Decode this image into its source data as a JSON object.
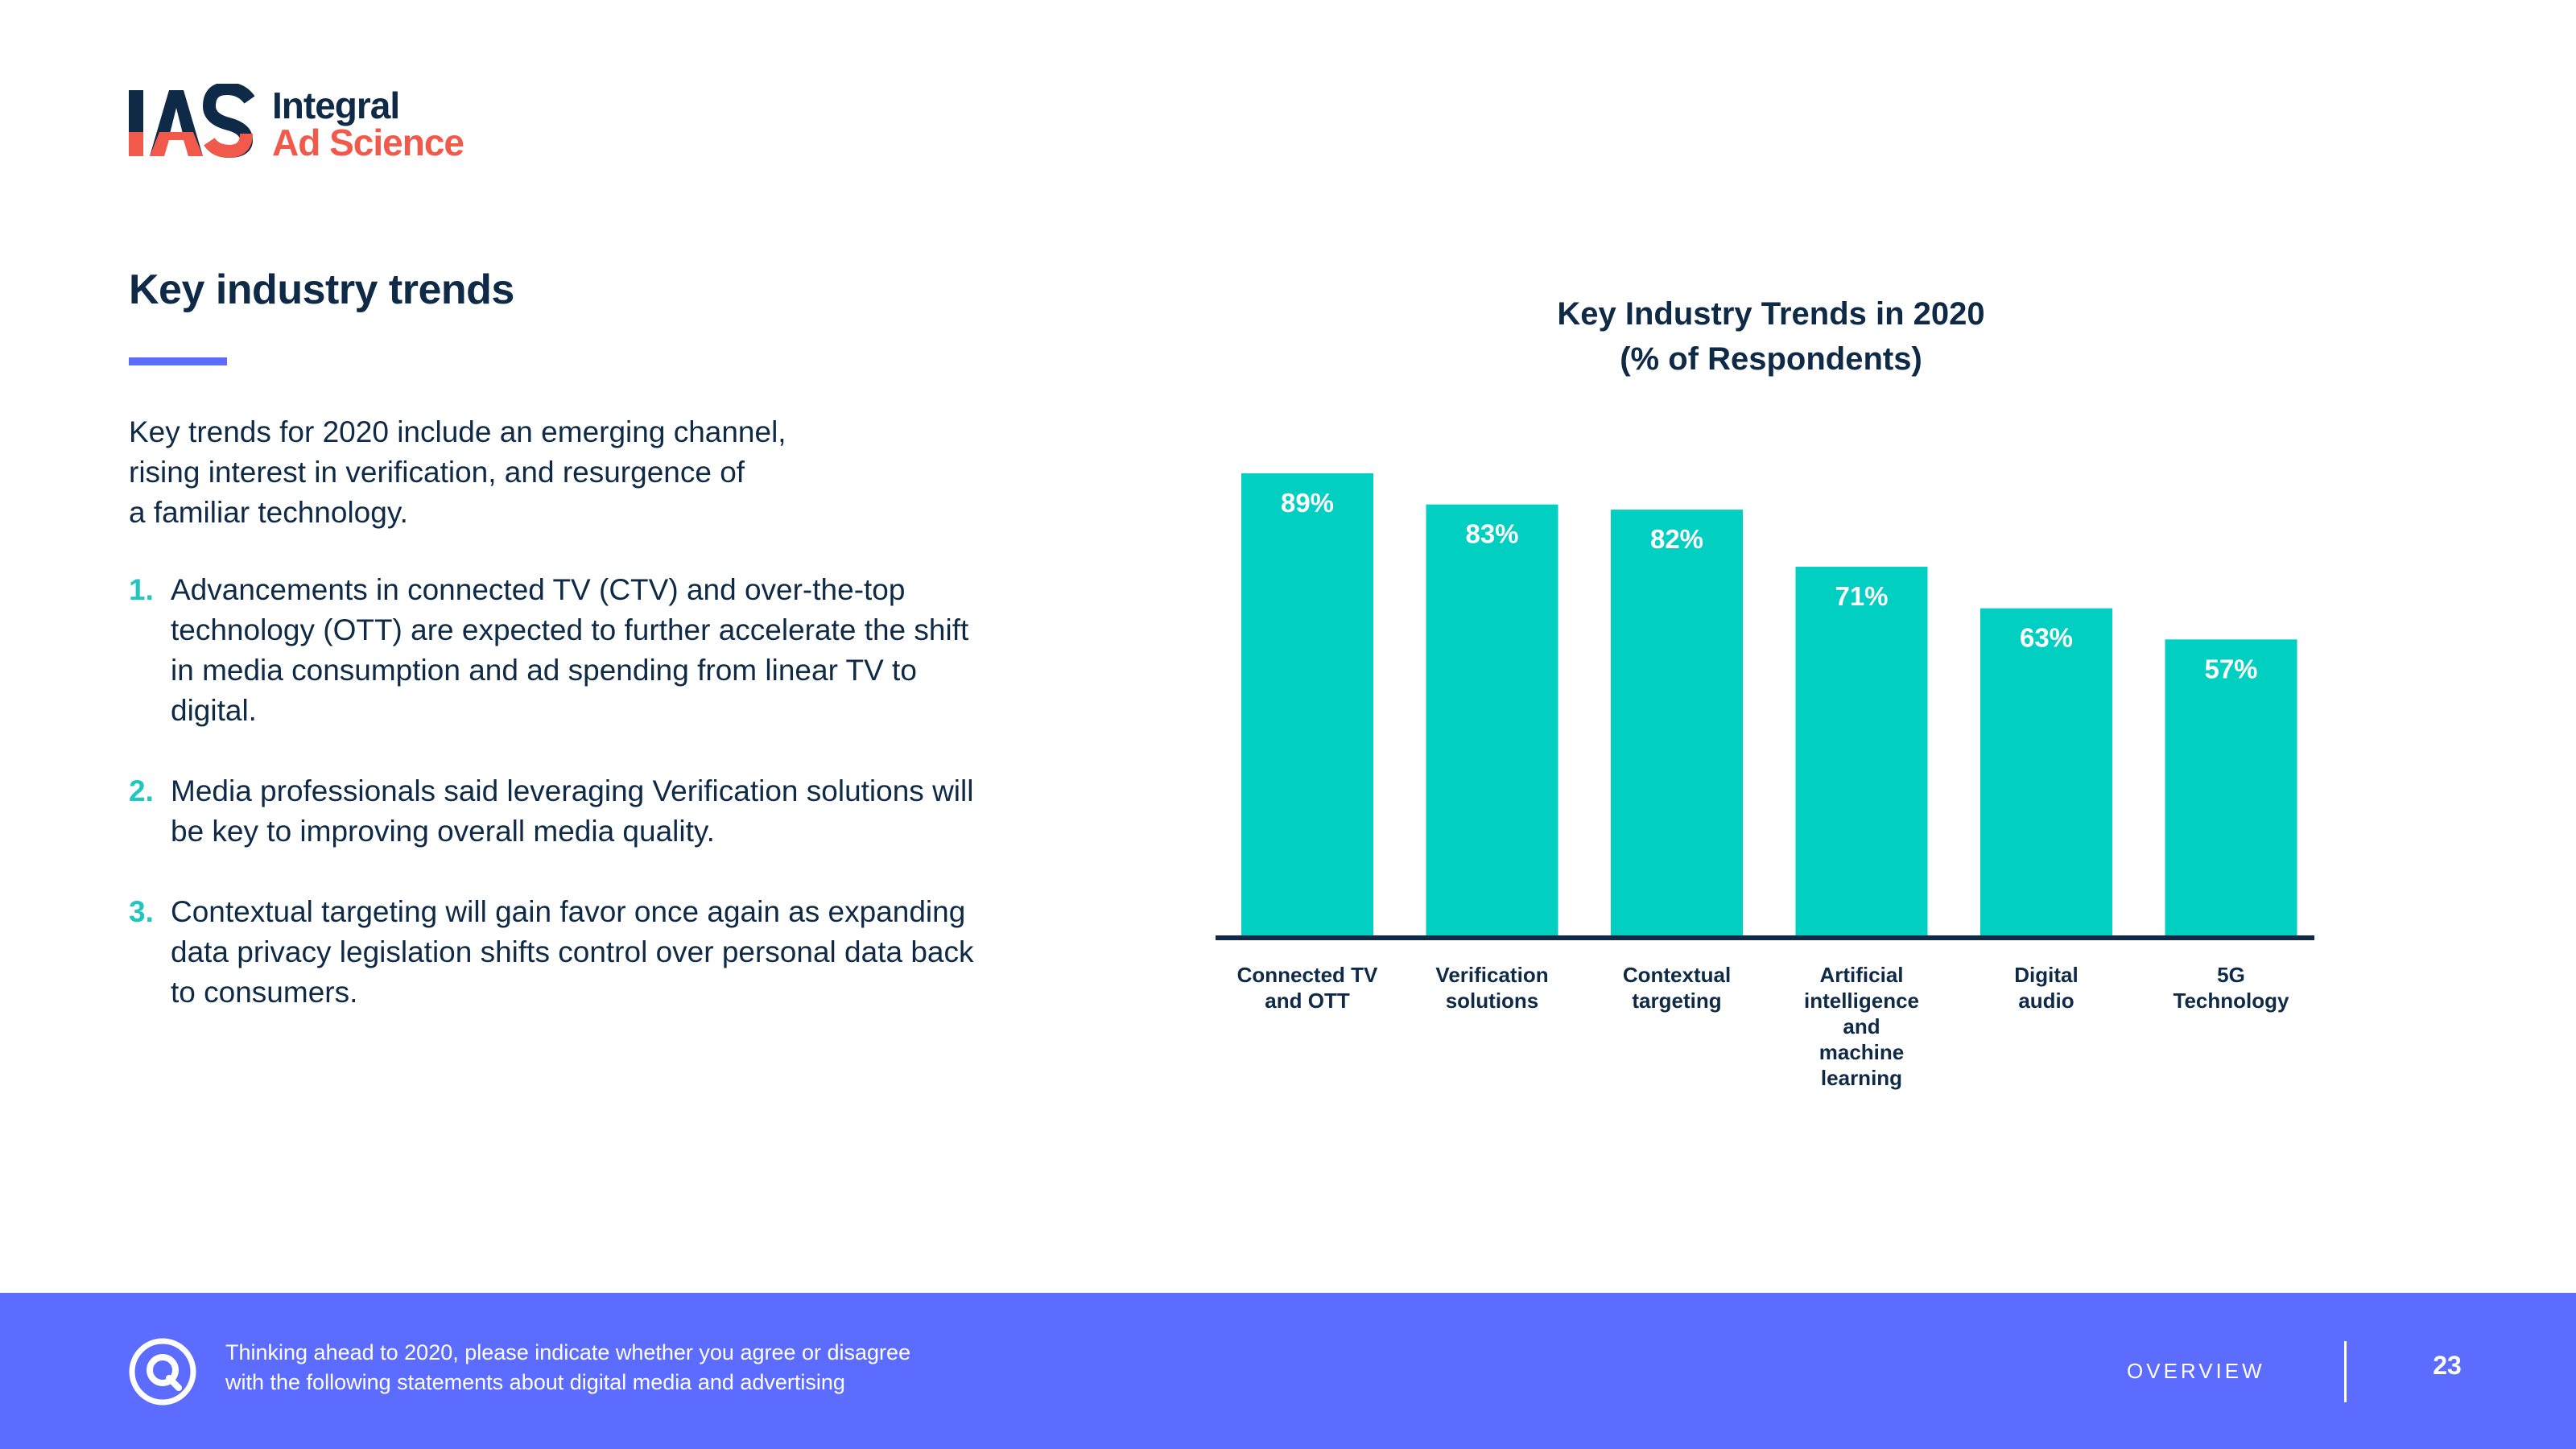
{
  "logo": {
    "line1": "Integral",
    "line2": "Ad Science",
    "mark_text": "IAS"
  },
  "left": {
    "title": "Key industry trends",
    "intro_lines": [
      "Key trends for 2020 include an emerging channel,",
      "rising interest in verification, and resurgence of",
      "a familiar technology."
    ],
    "points": [
      {
        "num": "1.",
        "text": "Advancements in connected TV (CTV) and over-the-top technology (OTT) are expected to further accelerate the shift in media consumption and ad spending from linear TV to digital."
      },
      {
        "num": "2.",
        "text": "Media professionals said leveraging Verification solutions will be key to improving overall media quality."
      },
      {
        "num": "3.",
        "text": "Contextual targeting will gain favor once again as expanding data privacy legislation shifts control over personal data back to consumers."
      }
    ]
  },
  "chart_data": {
    "type": "bar",
    "title": "Key Industry Trends in 2020",
    "title_lines": [
      "Key Industry Trends in 2020",
      "(% of Respondents)"
    ],
    "categories": [
      "Connected TV and OTT",
      "Verification solutions",
      "Contextual targeting",
      "Artificial intelligence and machine learning",
      "Digital audio",
      "5G Technology"
    ],
    "category_label_lines": [
      [
        "Connected TV",
        "and OTT"
      ],
      [
        "Verification",
        "solutions"
      ],
      [
        "Contextual",
        "targeting"
      ],
      [
        "Artificial",
        "intelligence",
        "and",
        "machine",
        "learning"
      ],
      [
        "Digital",
        "audio"
      ],
      [
        "5G",
        "Technology"
      ]
    ],
    "values": [
      89,
      83,
      82,
      71,
      63,
      57
    ],
    "value_labels": [
      "89%",
      "83%",
      "82%",
      "71%",
      "63%",
      "57%"
    ],
    "ylabel": "% of Respondents",
    "ylim": [
      0,
      100
    ],
    "grid": false,
    "bar_color": "#00cfc1",
    "axis_color": "#0e2a47"
  },
  "footer": {
    "note_lines": [
      "Thinking ahead to 2020, please indicate whether you agree or disagree",
      "with the following statements about digital media and advertising"
    ],
    "section": "OVERVIEW",
    "page": "23"
  },
  "colors": {
    "navy": "#0e2a47",
    "coral": "#f15a4a",
    "teal": "#1fc7c0",
    "accent": "#5b6cff"
  }
}
